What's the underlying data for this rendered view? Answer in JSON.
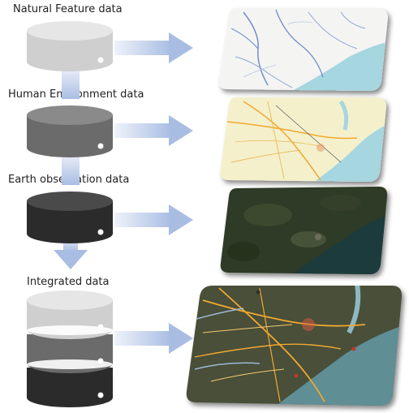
{
  "labels": {
    "natural": "Natural Feature data",
    "human": "Human Environment data",
    "earth": "Earth observation data",
    "integrated": "Integrated data"
  },
  "colors": {
    "db_light": "#cfcfcf",
    "db_mid": "#6b6b6b",
    "db_dark": "#2b2b2b",
    "arrow": "#b7c6e6",
    "water": "#a6d6df",
    "land_light": "#f3f3ee",
    "land_yellow": "#f5f0cc",
    "satellite": "#2f3a26",
    "road": "#f0a830"
  },
  "icons": [
    "database-icon",
    "arrow-right-icon",
    "arrow-down-icon",
    "map-icon"
  ]
}
